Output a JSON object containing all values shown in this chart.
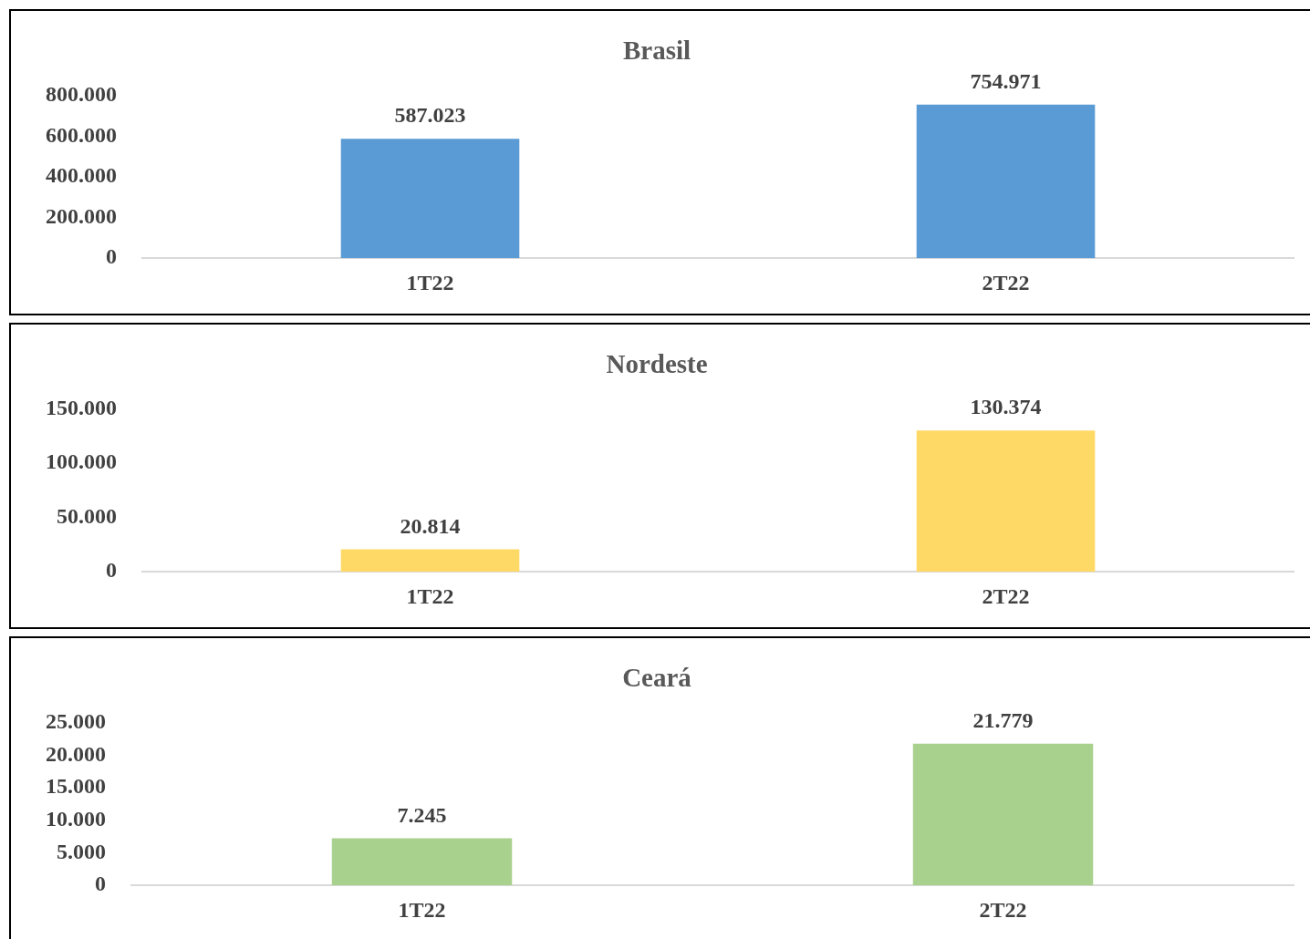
{
  "chart_data": [
    {
      "type": "bar",
      "title": "Brasil",
      "categories": [
        "1T22",
        "2T22"
      ],
      "values": [
        587023,
        754971
      ],
      "color": "#5b9bd5",
      "ylim": [
        0,
        800000
      ],
      "yticks": [
        {
          "value": 0,
          "label": "0"
        },
        {
          "value": 200000,
          "label": "200.000"
        },
        {
          "value": 400000,
          "label": "400.000"
        },
        {
          "value": 600000,
          "label": "600.000"
        },
        {
          "value": 800000,
          "label": "800.000"
        }
      ],
      "value_labels": [
        "587.023",
        "754.971"
      ],
      "grid": false
    },
    {
      "type": "bar",
      "title": "Nordeste",
      "categories": [
        "1T22",
        "2T22"
      ],
      "values": [
        20814,
        130374
      ],
      "color": "#ffd966",
      "ylim": [
        0,
        150000
      ],
      "yticks": [
        {
          "value": 0,
          "label": "0"
        },
        {
          "value": 50000,
          "label": "50.000"
        },
        {
          "value": 100000,
          "label": "100.000"
        },
        {
          "value": 150000,
          "label": "150.000"
        }
      ],
      "value_labels": [
        "20.814",
        "130.374"
      ],
      "grid": false
    },
    {
      "type": "bar",
      "title": "Ceará",
      "categories": [
        "1T22",
        "2T22"
      ],
      "values": [
        7245,
        21779
      ],
      "color": "#a9d18e",
      "ylim": [
        0,
        25000
      ],
      "yticks": [
        {
          "value": 0,
          "label": "0"
        },
        {
          "value": 5000,
          "label": "5.000"
        },
        {
          "value": 10000,
          "label": "10.000"
        },
        {
          "value": 15000,
          "label": "15.000"
        },
        {
          "value": 20000,
          "label": "20.000"
        },
        {
          "value": 25000,
          "label": "25.000"
        }
      ],
      "value_labels": [
        "7.245",
        "21.779"
      ],
      "grid": false
    }
  ]
}
